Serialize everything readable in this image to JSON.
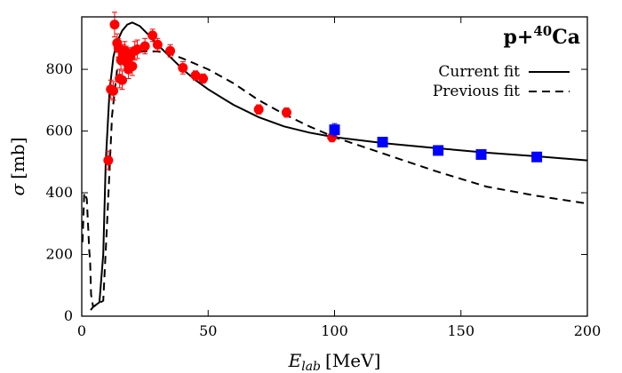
{
  "chart_data": {
    "type": "scatter",
    "annotation": {
      "base": "p+",
      "sup": "40",
      "el": "Ca"
    },
    "xlabel": {
      "main": "E",
      "sub": "lab",
      "unit": "[MeV]"
    },
    "ylabel": {
      "symbol": "σ",
      "unit": "[mb]"
    },
    "xlim": [
      0,
      200
    ],
    "ylim": [
      0,
      970
    ],
    "xticks": [
      0,
      50,
      100,
      150,
      200
    ],
    "yticks": [
      0,
      200,
      400,
      600,
      800
    ],
    "grid": false,
    "legend_position": "top-right",
    "series": [
      {
        "name": "Current fit",
        "kind": "line",
        "style": "solid",
        "color": "#000000",
        "x": [
          3.5,
          4.5,
          7.0,
          8.5,
          9.5,
          11.0,
          12.5,
          14.0,
          16.0,
          18.0,
          20.0,
          23.0,
          26.0,
          30.0,
          35.0,
          40.0,
          45.0,
          50.0,
          60.0,
          70.0,
          80.0,
          90.0,
          100.0,
          120.0,
          140.0,
          160.0,
          180.0,
          200.0
        ],
        "y": [
          20,
          30,
          45,
          200,
          500,
          730,
          840,
          890,
          925,
          945,
          952,
          940,
          915,
          880,
          840,
          800,
          765,
          735,
          685,
          645,
          615,
          595,
          580,
          560,
          545,
          530,
          518,
          505
        ]
      },
      {
        "name": "Previous fit",
        "kind": "line",
        "style": "dashed",
        "color": "#000000",
        "x": [
          0.3,
          1.0,
          2.0,
          3.0,
          3.3,
          3.7,
          4.5,
          5.5,
          6.5,
          7.5,
          8.5,
          10.0,
          12.0,
          14.0,
          17.0,
          20.0,
          25.0,
          30.0,
          35.0,
          40.0,
          50.0,
          60.0,
          70.0,
          80.0,
          90.0,
          100.0,
          120.0,
          140.0,
          160.0,
          180.0,
          200.0
        ],
        "y": [
          240,
          400,
          380,
          210,
          180,
          70,
          30,
          35,
          40,
          45,
          50,
          300,
          650,
          800,
          848,
          855,
          858,
          858,
          850,
          835,
          800,
          755,
          700,
          655,
          615,
          580,
          525,
          470,
          420,
          390,
          365
        ]
      },
      {
        "name": "",
        "kind": "markers",
        "marker": "circle",
        "color": "#ff0000",
        "x": [
          10.5,
          11.5,
          12.5,
          13.0,
          14.0,
          14.5,
          15.0,
          15.5,
          16.0,
          16.5,
          17.0,
          17.5,
          18.0,
          18.5,
          19.0,
          20.0,
          21.0,
          22.0,
          25.0,
          28.0,
          30.0,
          35.0,
          40.0,
          45.0,
          48.0,
          70.0,
          81.0,
          99.0
        ],
        "y": [
          505,
          735,
          730,
          945,
          885,
          870,
          770,
          830,
          765,
          850,
          860,
          845,
          820,
          800,
          840,
          810,
          860,
          865,
          875,
          910,
          880,
          860,
          805,
          780,
          770,
          670,
          660,
          580
        ],
        "err": [
          30,
          30,
          30,
          40,
          30,
          30,
          30,
          30,
          30,
          30,
          30,
          30,
          30,
          30,
          30,
          30,
          30,
          30,
          25,
          20,
          20,
          20,
          20,
          15,
          15,
          15,
          15,
          15
        ]
      },
      {
        "name": "",
        "kind": "markers",
        "marker": "square",
        "color": "#0000ff",
        "x": [
          100.0,
          119.0,
          141.0,
          158.0,
          180.0
        ],
        "y": [
          604,
          564,
          537,
          524,
          516
        ],
        "err": [
          20,
          12,
          12,
          12,
          12
        ]
      }
    ]
  }
}
